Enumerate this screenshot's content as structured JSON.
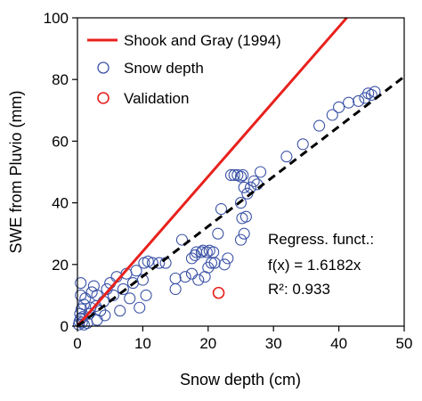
{
  "chart_data": {
    "type": "scatter",
    "xlabel": "Snow depth (cm)",
    "ylabel": "SWE from Pluvio (mm)",
    "xlim": [
      0,
      50
    ],
    "ylim": [
      0,
      100
    ],
    "xticks": [
      0,
      10,
      20,
      30,
      40,
      50
    ],
    "yticks": [
      0,
      20,
      40,
      60,
      80,
      100
    ],
    "grid": false,
    "legend_position": "top-left",
    "series": [
      {
        "name": "Shook and Gray (1994)",
        "kind": "line",
        "style": "solid",
        "color": "#e8211d",
        "x": [
          0,
          41.2
        ],
        "y": [
          0,
          100
        ]
      },
      {
        "name": "Snow depth",
        "kind": "scatter",
        "marker": "open-circle",
        "color": "#3a52a6",
        "points": [
          [
            0.2,
            0.5
          ],
          [
            0.3,
            1.5
          ],
          [
            0.5,
            2.5
          ],
          [
            0.4,
            4
          ],
          [
            0.6,
            5.5
          ],
          [
            0.8,
            3
          ],
          [
            1.0,
            7
          ],
          [
            1.2,
            9
          ],
          [
            0.5,
            10
          ],
          [
            1.5,
            1
          ],
          [
            1.8,
            4
          ],
          [
            2.0,
            6
          ],
          [
            2.2,
            11
          ],
          [
            2.5,
            13
          ],
          [
            1.0,
            0.5
          ],
          [
            0.7,
            1.2
          ],
          [
            3.0,
            2
          ],
          [
            3.5,
            5
          ],
          [
            4.0,
            8
          ],
          [
            4.5,
            12
          ],
          [
            5.0,
            14
          ],
          [
            5.5,
            10
          ],
          [
            6.0,
            16
          ],
          [
            3.0,
            10
          ],
          [
            2.8,
            6.5
          ],
          [
            4.2,
            3.5
          ],
          [
            6.5,
            5
          ],
          [
            7.0,
            12
          ],
          [
            7.5,
            17
          ],
          [
            8.0,
            9
          ],
          [
            8.5,
            14
          ],
          [
            9.0,
            18
          ],
          [
            9.5,
            6
          ],
          [
            10.0,
            15
          ],
          [
            10.2,
            20.5
          ],
          [
            10.8,
            21
          ],
          [
            11.5,
            20.5
          ],
          [
            12.5,
            20.5
          ],
          [
            10.5,
            10
          ],
          [
            13.5,
            20.5
          ],
          [
            15.0,
            12
          ],
          [
            16.0,
            28
          ],
          [
            16.5,
            16
          ],
          [
            17.5,
            17
          ],
          [
            18.0,
            23
          ],
          [
            19.0,
            24
          ],
          [
            19.5,
            16
          ],
          [
            19.2,
            24.5
          ],
          [
            19.8,
            24
          ],
          [
            20.2,
            24.5
          ],
          [
            20.5,
            20.5
          ],
          [
            21.0,
            20.5
          ],
          [
            20.0,
            19
          ],
          [
            18.5,
            15
          ],
          [
            17.5,
            22
          ],
          [
            18.2,
            24
          ],
          [
            20.8,
            24
          ],
          [
            21.5,
            30
          ],
          [
            22.0,
            38
          ],
          [
            22.5,
            20
          ],
          [
            23.0,
            22
          ],
          [
            23.5,
            49
          ],
          [
            24.0,
            49
          ],
          [
            24.5,
            49
          ],
          [
            25.0,
            48.5
          ],
          [
            25.3,
            49
          ],
          [
            25.5,
            45
          ],
          [
            25.0,
            40
          ],
          [
            25.2,
            35
          ],
          [
            25.5,
            30
          ],
          [
            25.0,
            28
          ],
          [
            26.0,
            43
          ],
          [
            26.5,
            45
          ],
          [
            27.0,
            47
          ],
          [
            27.5,
            46
          ],
          [
            28.0,
            50
          ],
          [
            25.8,
            35.5
          ],
          [
            32.0,
            55
          ],
          [
            34.5,
            59
          ],
          [
            37.0,
            65
          ],
          [
            39.0,
            68.5
          ],
          [
            40.0,
            71
          ],
          [
            41.5,
            72.5
          ],
          [
            43.0,
            73
          ],
          [
            44.0,
            74
          ],
          [
            45.0,
            75
          ],
          [
            45.5,
            76
          ],
          [
            44.5,
            75.5
          ],
          [
            0.5,
            14
          ],
          [
            15.0,
            15.5
          ]
        ]
      },
      {
        "name": "Validation",
        "kind": "scatter",
        "marker": "open-circle",
        "color": "#e8211d",
        "points": [
          [
            21.6,
            10.8
          ]
        ]
      },
      {
        "name": "Regression",
        "kind": "line",
        "style": "dashed",
        "color": "#000000",
        "slope": 1.6182,
        "x": [
          0,
          50
        ]
      }
    ],
    "annotations": [
      "Regress. funct.:",
      "f(x) = 1.6182x",
      "R²: 0.933"
    ]
  }
}
